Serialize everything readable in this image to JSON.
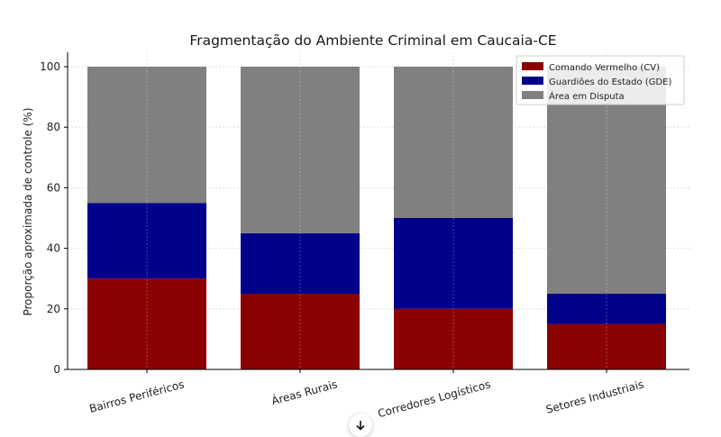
{
  "chart_data": {
    "type": "bar",
    "stacked": true,
    "title": "Fragmentação do Ambiente Criminal em Caucaia-CE",
    "xlabel": "",
    "ylabel": "Proporção aproximada de controle (%)",
    "ylim": [
      0,
      100
    ],
    "yticks": [
      0,
      20,
      40,
      60,
      80,
      100
    ],
    "grid": true,
    "legend_position": "top-right",
    "categories": [
      "Bairros Periféricos",
      "Áreas Rurais",
      "Corredores Logísticos",
      "Setores Industriais"
    ],
    "series": [
      {
        "name": "Comando Vermelho (CV)",
        "color": "#8b0000",
        "values": [
          30,
          25,
          20,
          15
        ]
      },
      {
        "name": "Guardiões do Estado (GDE)",
        "color": "#00008b",
        "values": [
          25,
          20,
          30,
          10
        ]
      },
      {
        "name": "Área em Disputa",
        "color": "#808080",
        "values": [
          45,
          55,
          50,
          75
        ]
      }
    ]
  },
  "ui": {
    "scroll_icon": "arrow-down-icon"
  }
}
